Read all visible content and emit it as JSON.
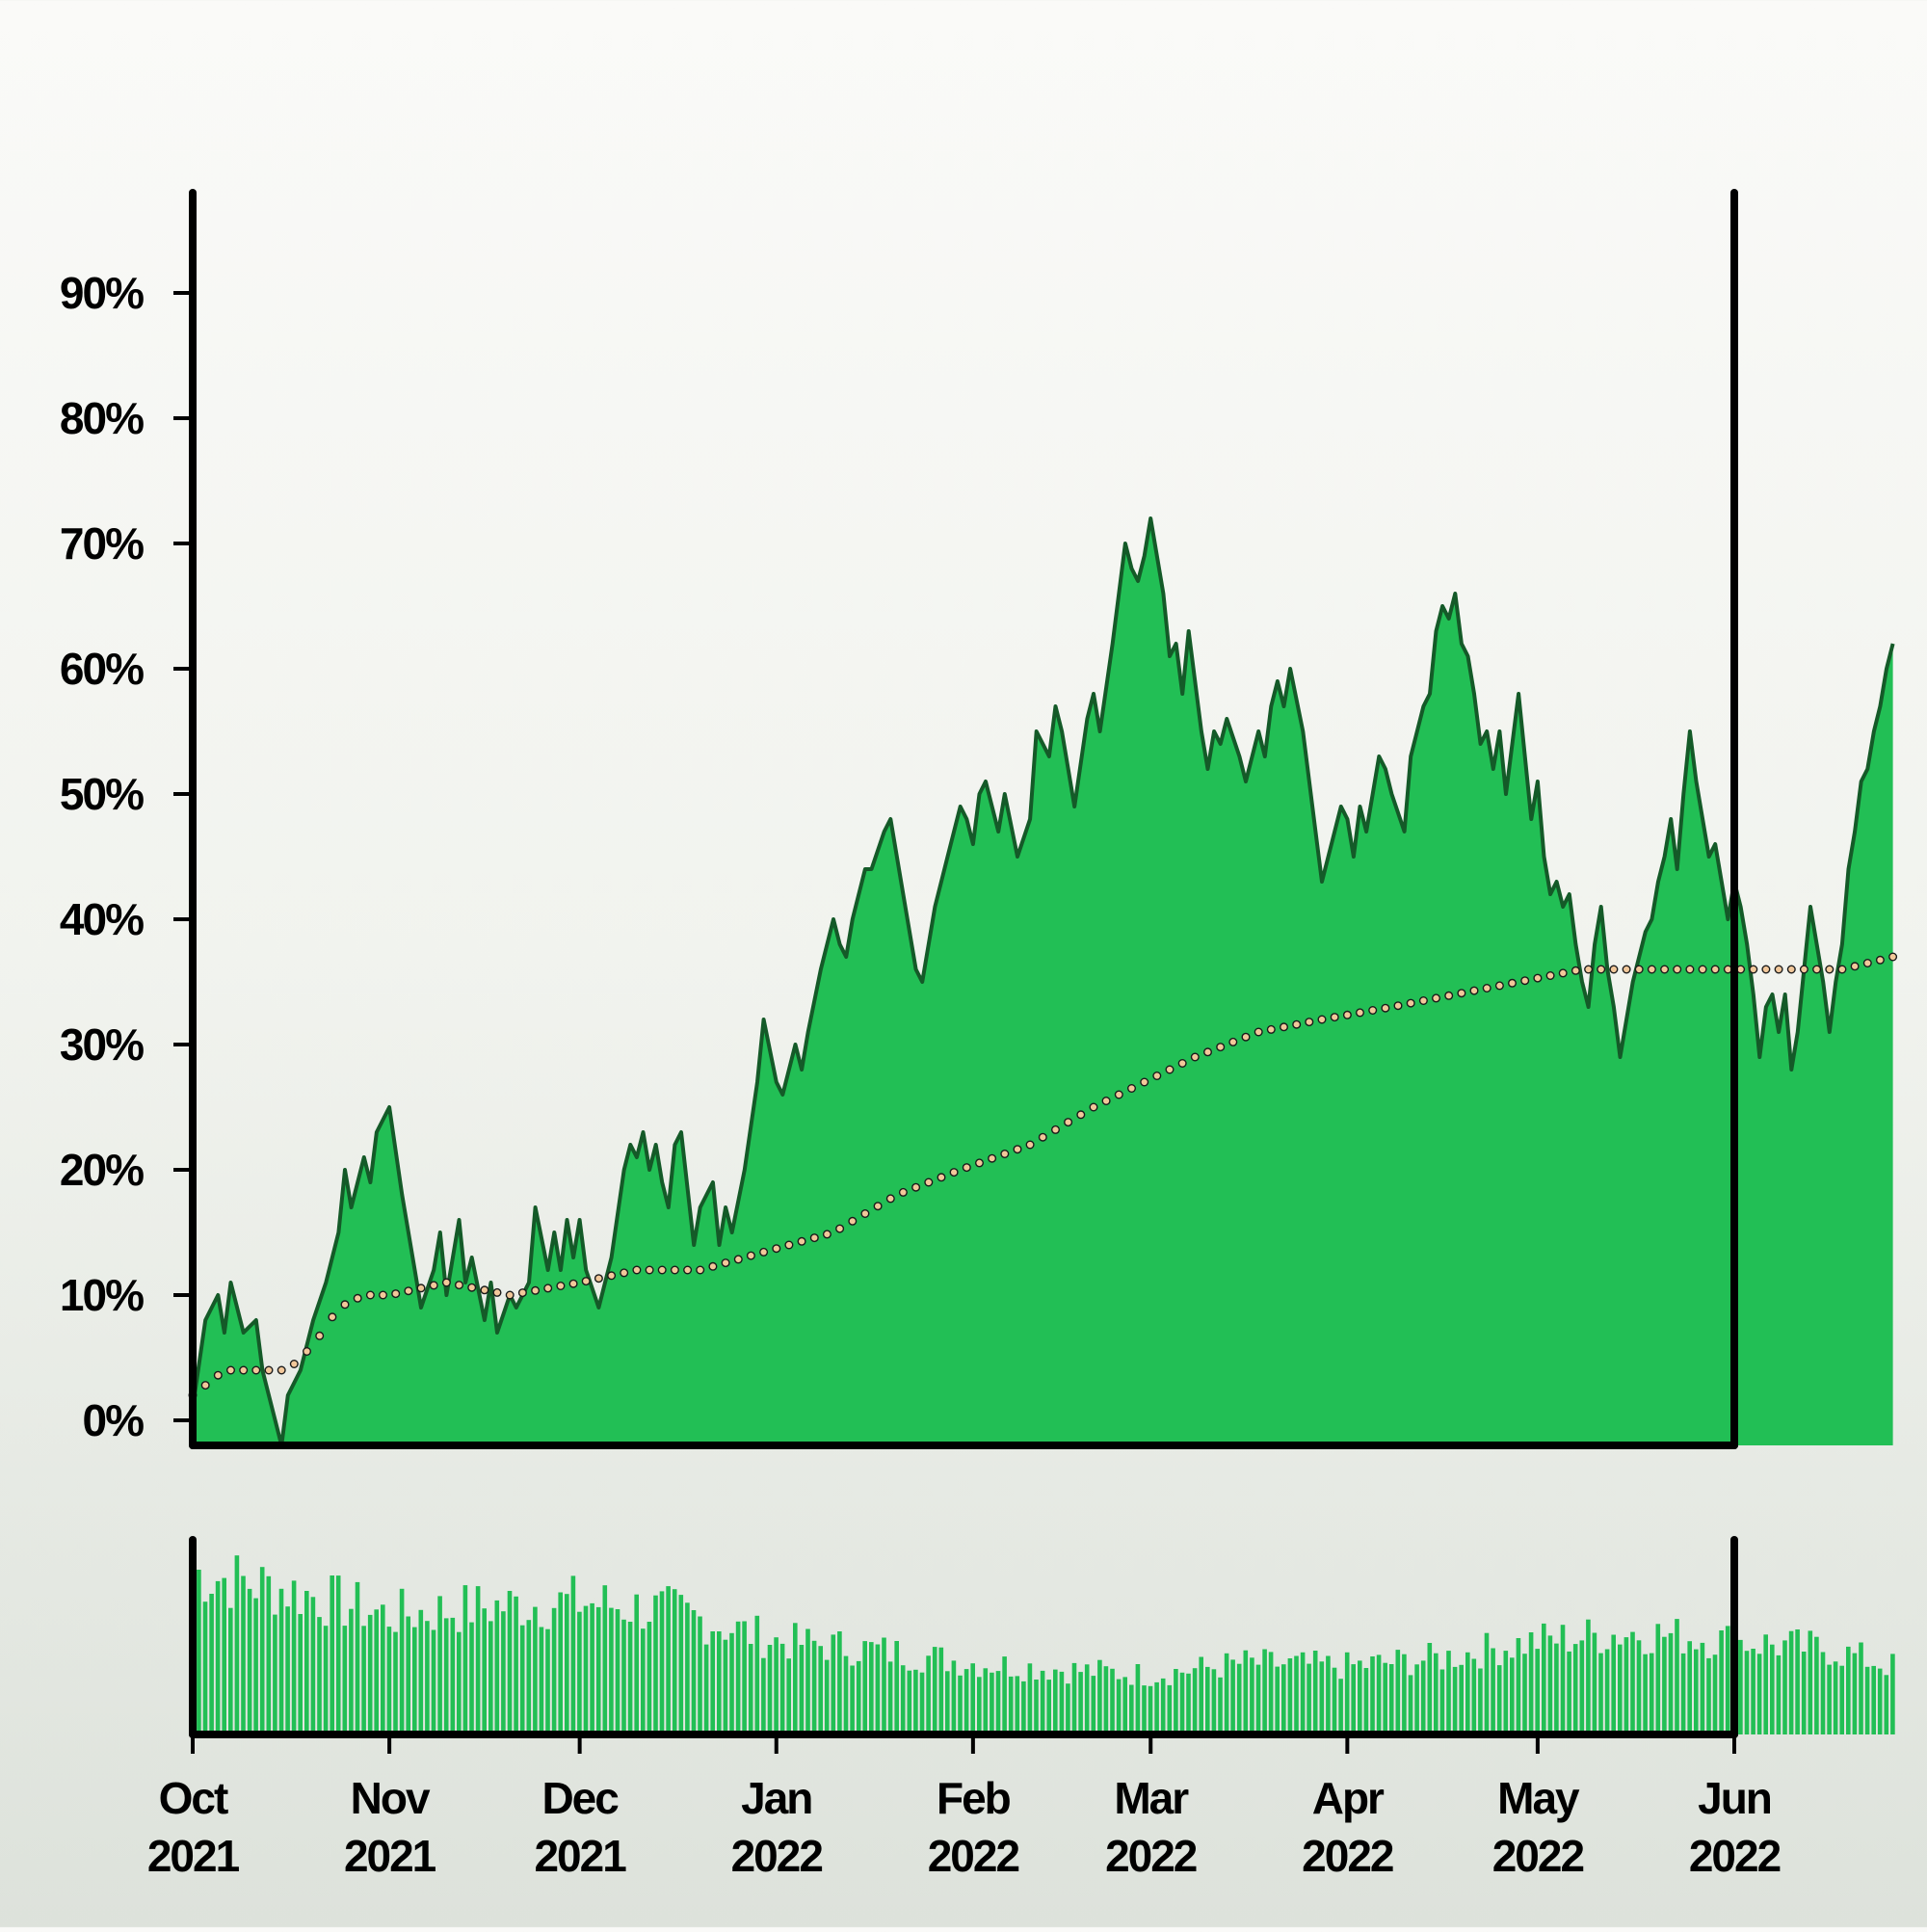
{
  "chart_data": {
    "type": "area",
    "title": "",
    "xlabel": "",
    "ylabel": "",
    "x_start": "2021-10-01",
    "x_end": "2022-06-01",
    "ylim": [
      -2,
      98
    ],
    "y_ticks": [
      {
        "value": 0,
        "label": "0%"
      },
      {
        "value": 10,
        "label": "10%"
      },
      {
        "value": 20,
        "label": "20%"
      },
      {
        "value": 30,
        "label": "30%"
      },
      {
        "value": 40,
        "label": "40%"
      },
      {
        "value": 50,
        "label": "50%"
      },
      {
        "value": 60,
        "label": "60%"
      },
      {
        "value": 70,
        "label": "70%"
      },
      {
        "value": 80,
        "label": "80%"
      },
      {
        "value": 90,
        "label": "90%"
      }
    ],
    "x_ticks": [
      {
        "date": "2021-10-01",
        "month": "Oct",
        "year": "2021"
      },
      {
        "date": "2021-11-01",
        "month": "Nov",
        "year": "2021"
      },
      {
        "date": "2021-12-01",
        "month": "Dec",
        "year": "2021"
      },
      {
        "date": "2022-01-01",
        "month": "Jan",
        "year": "2022"
      },
      {
        "date": "2022-02-01",
        "month": "Feb",
        "year": "2022"
      },
      {
        "date": "2022-03-01",
        "month": "Mar",
        "year": "2022"
      },
      {
        "date": "2022-04-01",
        "month": "Apr",
        "year": "2022"
      },
      {
        "date": "2022-05-01",
        "month": "May",
        "year": "2022"
      },
      {
        "date": "2022-06-01",
        "month": "Jun",
        "year": "2022"
      }
    ],
    "series": [
      {
        "kind": "area",
        "color": "#22bf55",
        "line_color": "#145a28",
        "points": [
          [
            "2021-10-01",
            1
          ],
          [
            "2021-10-03",
            8
          ],
          [
            "2021-10-05",
            10
          ],
          [
            "2021-10-06",
            7
          ],
          [
            "2021-10-07",
            11
          ],
          [
            "2021-10-09",
            7
          ],
          [
            "2021-10-11",
            8
          ],
          [
            "2021-10-12",
            4
          ],
          [
            "2021-10-13",
            2
          ],
          [
            "2021-10-15",
            -2
          ],
          [
            "2021-10-16",
            2
          ],
          [
            "2021-10-18",
            4
          ],
          [
            "2021-10-20",
            8
          ],
          [
            "2021-10-22",
            11
          ],
          [
            "2021-10-24",
            15
          ],
          [
            "2021-10-25",
            20
          ],
          [
            "2021-10-26",
            17
          ],
          [
            "2021-10-28",
            21
          ],
          [
            "2021-10-29",
            19
          ],
          [
            "2021-10-30",
            23
          ],
          [
            "2021-11-01",
            25
          ],
          [
            "2021-11-03",
            18
          ],
          [
            "2021-11-05",
            12
          ],
          [
            "2021-11-06",
            9
          ],
          [
            "2021-11-08",
            12
          ],
          [
            "2021-11-09",
            15
          ],
          [
            "2021-11-10",
            10
          ],
          [
            "2021-11-12",
            16
          ],
          [
            "2021-11-13",
            11
          ],
          [
            "2021-11-14",
            13
          ],
          [
            "2021-11-16",
            8
          ],
          [
            "2021-11-17",
            11
          ],
          [
            "2021-11-18",
            7
          ],
          [
            "2021-11-20",
            10
          ],
          [
            "2021-11-21",
            9
          ],
          [
            "2021-11-23",
            11
          ],
          [
            "2021-11-24",
            17
          ],
          [
            "2021-11-26",
            12
          ],
          [
            "2021-11-27",
            15
          ],
          [
            "2021-11-28",
            12
          ],
          [
            "2021-11-29",
            16
          ],
          [
            "2021-11-30",
            13
          ],
          [
            "2021-12-01",
            16
          ],
          [
            "2021-12-02",
            12
          ],
          [
            "2021-12-04",
            9
          ],
          [
            "2021-12-06",
            13
          ],
          [
            "2021-12-08",
            20
          ],
          [
            "2021-12-09",
            22
          ],
          [
            "2021-12-10",
            21
          ],
          [
            "2021-12-11",
            23
          ],
          [
            "2021-12-12",
            20
          ],
          [
            "2021-12-13",
            22
          ],
          [
            "2021-12-14",
            19
          ],
          [
            "2021-12-15",
            17
          ],
          [
            "2021-12-16",
            22
          ],
          [
            "2021-12-17",
            23
          ],
          [
            "2021-12-19",
            14
          ],
          [
            "2021-12-20",
            17
          ],
          [
            "2021-12-22",
            19
          ],
          [
            "2021-12-23",
            14
          ],
          [
            "2021-12-24",
            17
          ],
          [
            "2021-12-25",
            15
          ],
          [
            "2021-12-27",
            20
          ],
          [
            "2021-12-29",
            27
          ],
          [
            "2021-12-30",
            32
          ],
          [
            "2022-01-01",
            27
          ],
          [
            "2022-01-02",
            26
          ],
          [
            "2022-01-04",
            30
          ],
          [
            "2022-01-05",
            28
          ],
          [
            "2022-01-06",
            31
          ],
          [
            "2022-01-08",
            36
          ],
          [
            "2022-01-10",
            40
          ],
          [
            "2022-01-11",
            38
          ],
          [
            "2022-01-12",
            37
          ],
          [
            "2022-01-13",
            40
          ],
          [
            "2022-01-15",
            44
          ],
          [
            "2022-01-16",
            44
          ],
          [
            "2022-01-18",
            47
          ],
          [
            "2022-01-19",
            48
          ],
          [
            "2022-01-21",
            42
          ],
          [
            "2022-01-23",
            36
          ],
          [
            "2022-01-24",
            35
          ],
          [
            "2022-01-26",
            41
          ],
          [
            "2022-01-28",
            45
          ],
          [
            "2022-01-30",
            49
          ],
          [
            "2022-01-31",
            48
          ],
          [
            "2022-02-01",
            46
          ],
          [
            "2022-02-02",
            50
          ],
          [
            "2022-02-03",
            51
          ],
          [
            "2022-02-05",
            47
          ],
          [
            "2022-02-06",
            50
          ],
          [
            "2022-02-08",
            45
          ],
          [
            "2022-02-10",
            48
          ],
          [
            "2022-02-11",
            55
          ],
          [
            "2022-02-13",
            53
          ],
          [
            "2022-02-14",
            57
          ],
          [
            "2022-02-15",
            55
          ],
          [
            "2022-02-17",
            49
          ],
          [
            "2022-02-19",
            56
          ],
          [
            "2022-02-20",
            58
          ],
          [
            "2022-02-21",
            55
          ],
          [
            "2022-02-23",
            62
          ],
          [
            "2022-02-24",
            66
          ],
          [
            "2022-02-25",
            70
          ],
          [
            "2022-02-26",
            68
          ],
          [
            "2022-02-27",
            67
          ],
          [
            "2022-02-28",
            69
          ],
          [
            "2022-03-01",
            72
          ],
          [
            "2022-03-03",
            66
          ],
          [
            "2022-03-04",
            61
          ],
          [
            "2022-03-05",
            62
          ],
          [
            "2022-03-06",
            58
          ],
          [
            "2022-03-07",
            63
          ],
          [
            "2022-03-09",
            55
          ],
          [
            "2022-03-10",
            52
          ],
          [
            "2022-03-11",
            55
          ],
          [
            "2022-03-12",
            54
          ],
          [
            "2022-03-13",
            56
          ],
          [
            "2022-03-15",
            53
          ],
          [
            "2022-03-16",
            51
          ],
          [
            "2022-03-18",
            55
          ],
          [
            "2022-03-19",
            53
          ],
          [
            "2022-03-20",
            57
          ],
          [
            "2022-03-21",
            59
          ],
          [
            "2022-03-22",
            57
          ],
          [
            "2022-03-23",
            60
          ],
          [
            "2022-03-25",
            55
          ],
          [
            "2022-03-27",
            47
          ],
          [
            "2022-03-28",
            43
          ],
          [
            "2022-03-30",
            47
          ],
          [
            "2022-03-31",
            49
          ],
          [
            "2022-04-01",
            48
          ],
          [
            "2022-04-02",
            45
          ],
          [
            "2022-04-03",
            49
          ],
          [
            "2022-04-04",
            47
          ],
          [
            "2022-04-06",
            53
          ],
          [
            "2022-04-07",
            52
          ],
          [
            "2022-04-08",
            50
          ],
          [
            "2022-04-10",
            47
          ],
          [
            "2022-04-11",
            53
          ],
          [
            "2022-04-13",
            57
          ],
          [
            "2022-04-14",
            58
          ],
          [
            "2022-04-15",
            63
          ],
          [
            "2022-04-16",
            65
          ],
          [
            "2022-04-17",
            64
          ],
          [
            "2022-04-18",
            66
          ],
          [
            "2022-04-19",
            62
          ],
          [
            "2022-04-20",
            61
          ],
          [
            "2022-04-21",
            58
          ],
          [
            "2022-04-22",
            54
          ],
          [
            "2022-04-23",
            55
          ],
          [
            "2022-04-24",
            52
          ],
          [
            "2022-04-25",
            55
          ],
          [
            "2022-04-26",
            50
          ],
          [
            "2022-04-28",
            58
          ],
          [
            "2022-04-29",
            53
          ],
          [
            "2022-04-30",
            48
          ],
          [
            "2022-05-01",
            51
          ],
          [
            "2022-05-02",
            45
          ],
          [
            "2022-05-03",
            42
          ],
          [
            "2022-05-04",
            43
          ],
          [
            "2022-05-05",
            41
          ],
          [
            "2022-05-06",
            42
          ],
          [
            "2022-05-07",
            38
          ],
          [
            "2022-05-08",
            35
          ],
          [
            "2022-05-09",
            33
          ],
          [
            "2022-05-10",
            38
          ],
          [
            "2022-05-11",
            41
          ],
          [
            "2022-05-12",
            36
          ],
          [
            "2022-05-13",
            33
          ],
          [
            "2022-05-14",
            29
          ],
          [
            "2022-05-15",
            32
          ],
          [
            "2022-05-16",
            35
          ],
          [
            "2022-05-18",
            39
          ],
          [
            "2022-05-19",
            40
          ],
          [
            "2022-05-20",
            43
          ],
          [
            "2022-05-21",
            45
          ],
          [
            "2022-05-22",
            48
          ],
          [
            "2022-05-23",
            44
          ],
          [
            "2022-05-24",
            50
          ],
          [
            "2022-05-25",
            55
          ],
          [
            "2022-05-26",
            51
          ],
          [
            "2022-05-27",
            48
          ],
          [
            "2022-05-28",
            45
          ],
          [
            "2022-05-29",
            46
          ],
          [
            "2022-05-30",
            43
          ],
          [
            "2022-05-31",
            40
          ],
          [
            "2022-06-01",
            43
          ],
          [
            "2022-06-02",
            41
          ],
          [
            "2022-06-03",
            38
          ],
          [
            "2022-06-04",
            34
          ],
          [
            "2022-06-05",
            29
          ],
          [
            "2022-06-06",
            33
          ],
          [
            "2022-06-07",
            34
          ],
          [
            "2022-06-08",
            31
          ],
          [
            "2022-06-09",
            34
          ],
          [
            "2022-06-10",
            28
          ],
          [
            "2022-06-11",
            31
          ],
          [
            "2022-06-12",
            36
          ],
          [
            "2022-06-13",
            41
          ],
          [
            "2022-06-14",
            38
          ],
          [
            "2022-06-15",
            35
          ],
          [
            "2022-06-16",
            31
          ],
          [
            "2022-06-17",
            35
          ],
          [
            "2022-06-18",
            38
          ],
          [
            "2022-06-19",
            44
          ],
          [
            "2022-06-20",
            47
          ],
          [
            "2022-06-21",
            51
          ],
          [
            "2022-06-22",
            52
          ],
          [
            "2022-06-23",
            55
          ],
          [
            "2022-06-24",
            57
          ],
          [
            "2022-06-25",
            60
          ],
          [
            "2022-06-26",
            62
          ]
        ]
      },
      {
        "kind": "line",
        "style": "dotted",
        "color": "#f2c89a",
        "points": [
          [
            "2021-10-01",
            2
          ],
          [
            "2021-10-06",
            4
          ],
          [
            "2021-10-12",
            4
          ],
          [
            "2021-10-16",
            4
          ],
          [
            "2021-10-20",
            6
          ],
          [
            "2021-10-24",
            9
          ],
          [
            "2021-10-28",
            10
          ],
          [
            "2021-11-01",
            10
          ],
          [
            "2021-11-10",
            11
          ],
          [
            "2021-11-20",
            10
          ],
          [
            "2021-12-01",
            11
          ],
          [
            "2021-12-10",
            12
          ],
          [
            "2021-12-20",
            12
          ],
          [
            "2021-12-27",
            13
          ],
          [
            "2022-01-03",
            14
          ],
          [
            "2022-01-10",
            15
          ],
          [
            "2022-01-20",
            18
          ],
          [
            "2022-01-30",
            20
          ],
          [
            "2022-02-10",
            22
          ],
          [
            "2022-02-20",
            25
          ],
          [
            "2022-02-28",
            27
          ],
          [
            "2022-03-08",
            29
          ],
          [
            "2022-03-18",
            31
          ],
          [
            "2022-03-28",
            32
          ],
          [
            "2022-04-08",
            33
          ],
          [
            "2022-04-18",
            34
          ],
          [
            "2022-04-28",
            35
          ],
          [
            "2022-05-08",
            36
          ],
          [
            "2022-05-18",
            36
          ],
          [
            "2022-05-28",
            36
          ],
          [
            "2022-06-08",
            36
          ],
          [
            "2022-06-18",
            36
          ],
          [
            "2022-06-26",
            37
          ]
        ]
      }
    ]
  },
  "volume_data": {
    "type": "bar",
    "color": "#22bf55",
    "ylim": [
      0,
      1
    ],
    "points": [
      [
        "2021-10-01",
        0.95
      ],
      [
        "2021-10-16",
        0.85
      ],
      [
        "2021-11-01",
        0.7
      ],
      [
        "2021-11-16",
        0.75
      ],
      [
        "2021-12-01",
        0.78
      ],
      [
        "2021-12-16",
        0.72
      ],
      [
        "2022-01-01",
        0.55
      ],
      [
        "2022-01-16",
        0.5
      ],
      [
        "2022-02-01",
        0.42
      ],
      [
        "2022-02-16",
        0.38
      ],
      [
        "2022-03-01",
        0.35
      ],
      [
        "2022-03-16",
        0.42
      ],
      [
        "2022-04-01",
        0.4
      ],
      [
        "2022-04-16",
        0.45
      ],
      [
        "2022-05-01",
        0.55
      ],
      [
        "2022-05-16",
        0.6
      ],
      [
        "2022-06-01",
        0.55
      ],
      [
        "2022-06-16",
        0.5
      ],
      [
        "2022-06-26",
        0.4
      ]
    ]
  }
}
